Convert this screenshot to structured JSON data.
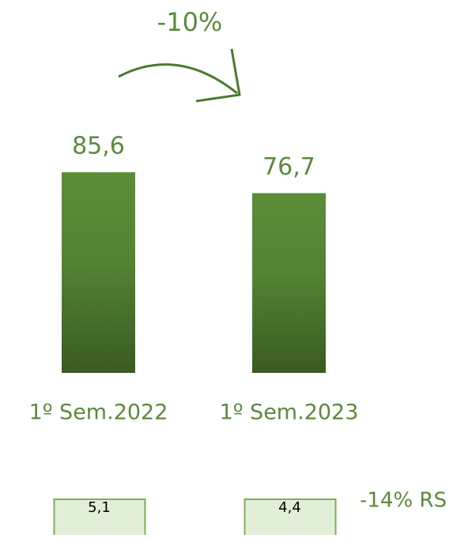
{
  "chart_data": {
    "type": "bar",
    "annotation": "-10%",
    "categories": [
      "1º Sem.2022",
      "1º Sem.2023"
    ],
    "values": [
      85.6,
      76.7
    ],
    "value_labels": [
      "85,6",
      "76,7"
    ],
    "color": "#4f7f31",
    "secondary": {
      "values": [
        5.1,
        4.4
      ],
      "value_labels": [
        "5,1",
        "4,4"
      ],
      "annotation": "-14% RS"
    }
  }
}
